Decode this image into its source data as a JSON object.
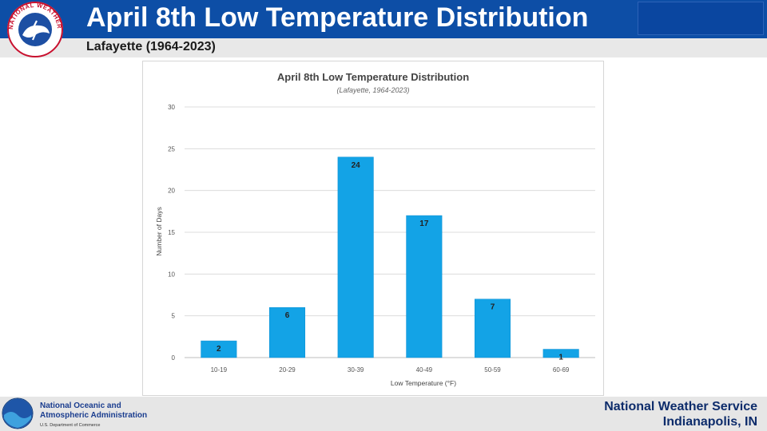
{
  "header": {
    "title": "April 8th Low Temperature Distribution",
    "logo_text": "NATIONAL WEATHER SERVICE"
  },
  "subheader": {
    "subtitle": "Lafayette (1964-2023)"
  },
  "footer": {
    "noaa_line1": "National Oceanic and",
    "noaa_line2": "Atmospheric Administration",
    "noaa_line3": "U.S. Department of Commerce",
    "nws_line1": "National Weather Service",
    "nws_line2": "Indianapolis, IN"
  },
  "colors": {
    "header_bg": "#0d4ea6",
    "bar": "#13a3e6",
    "bar_dark": "#0a8fd3"
  },
  "chart_data": {
    "type": "bar",
    "title": "April 8th Low Temperature Distribution",
    "subtitle": "(Lafayette, 1964-2023)",
    "xlabel": "Low Temperature (°F)",
    "ylabel": "Number of Days",
    "categories": [
      "10-19",
      "20-29",
      "30-39",
      "40-49",
      "50-59",
      "60-69"
    ],
    "values": [
      2,
      6,
      24,
      17,
      7,
      1
    ],
    "ylim": [
      0,
      30
    ],
    "yticks": [
      0,
      5,
      10,
      15,
      20,
      25,
      30
    ],
    "grid": true,
    "data_labels": true
  }
}
